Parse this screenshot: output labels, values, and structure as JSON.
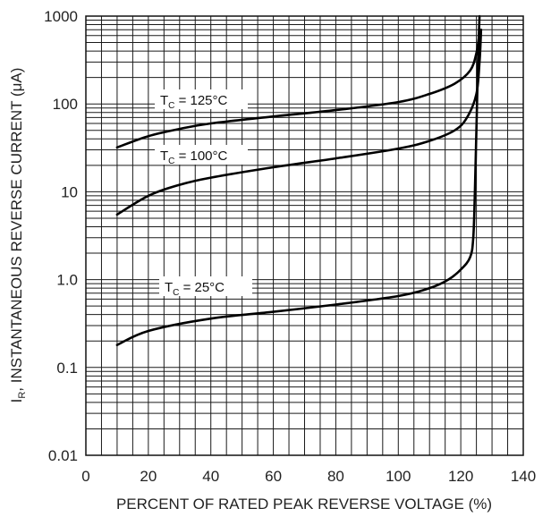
{
  "chart_data": {
    "type": "line",
    "title": "",
    "xlabel": "PERCENT OF RATED PEAK REVERSE VOLTAGE (%)",
    "ylabel_main": "I",
    "ylabel_sub": "R",
    "ylabel_rest": ", INSTANTANEOUS REVERSE CURRENT (μA)",
    "xlim": [
      0,
      140
    ],
    "ylim": [
      0.01,
      1000
    ],
    "yscale": "log",
    "grid": true,
    "x_ticks": [
      "0",
      "20",
      "40",
      "60",
      "80",
      "100",
      "120",
      "140"
    ],
    "y_ticks": [
      "0.01",
      "0.1",
      "1.0",
      "10",
      "100",
      "1000"
    ],
    "series": [
      {
        "label_main": "T",
        "label_sub": "C",
        "label_rest": " = 125°C",
        "points": [
          [
            10,
            32
          ],
          [
            20,
            43
          ],
          [
            30,
            52
          ],
          [
            40,
            60
          ],
          [
            60,
            72
          ],
          [
            80,
            85
          ],
          [
            100,
            105
          ],
          [
            110,
            130
          ],
          [
            118,
            170
          ],
          [
            123,
            240
          ],
          [
            125,
            380
          ],
          [
            126,
            650
          ]
        ]
      },
      {
        "label_main": "T",
        "label_sub": "C",
        "label_rest": " = 100°C",
        "points": [
          [
            10,
            5.5
          ],
          [
            20,
            9
          ],
          [
            30,
            12
          ],
          [
            40,
            14.5
          ],
          [
            60,
            19
          ],
          [
            80,
            24
          ],
          [
            100,
            31
          ],
          [
            110,
            38
          ],
          [
            118,
            50
          ],
          [
            122,
            70
          ],
          [
            125,
            130
          ],
          [
            126,
            300
          ],
          [
            126.5,
            700
          ]
        ]
      },
      {
        "label_main": "T",
        "label_sub": "C",
        "label_rest": " = 25°C",
        "points": [
          [
            10,
            0.18
          ],
          [
            20,
            0.26
          ],
          [
            40,
            0.36
          ],
          [
            60,
            0.43
          ],
          [
            80,
            0.52
          ],
          [
            100,
            0.65
          ],
          [
            110,
            0.8
          ],
          [
            116,
            1.0
          ],
          [
            120,
            1.3
          ],
          [
            123,
            1.8
          ],
          [
            124,
            3
          ],
          [
            124.5,
            10
          ],
          [
            125,
            50
          ],
          [
            125.5,
            300
          ],
          [
            126,
            1000
          ]
        ]
      }
    ]
  }
}
